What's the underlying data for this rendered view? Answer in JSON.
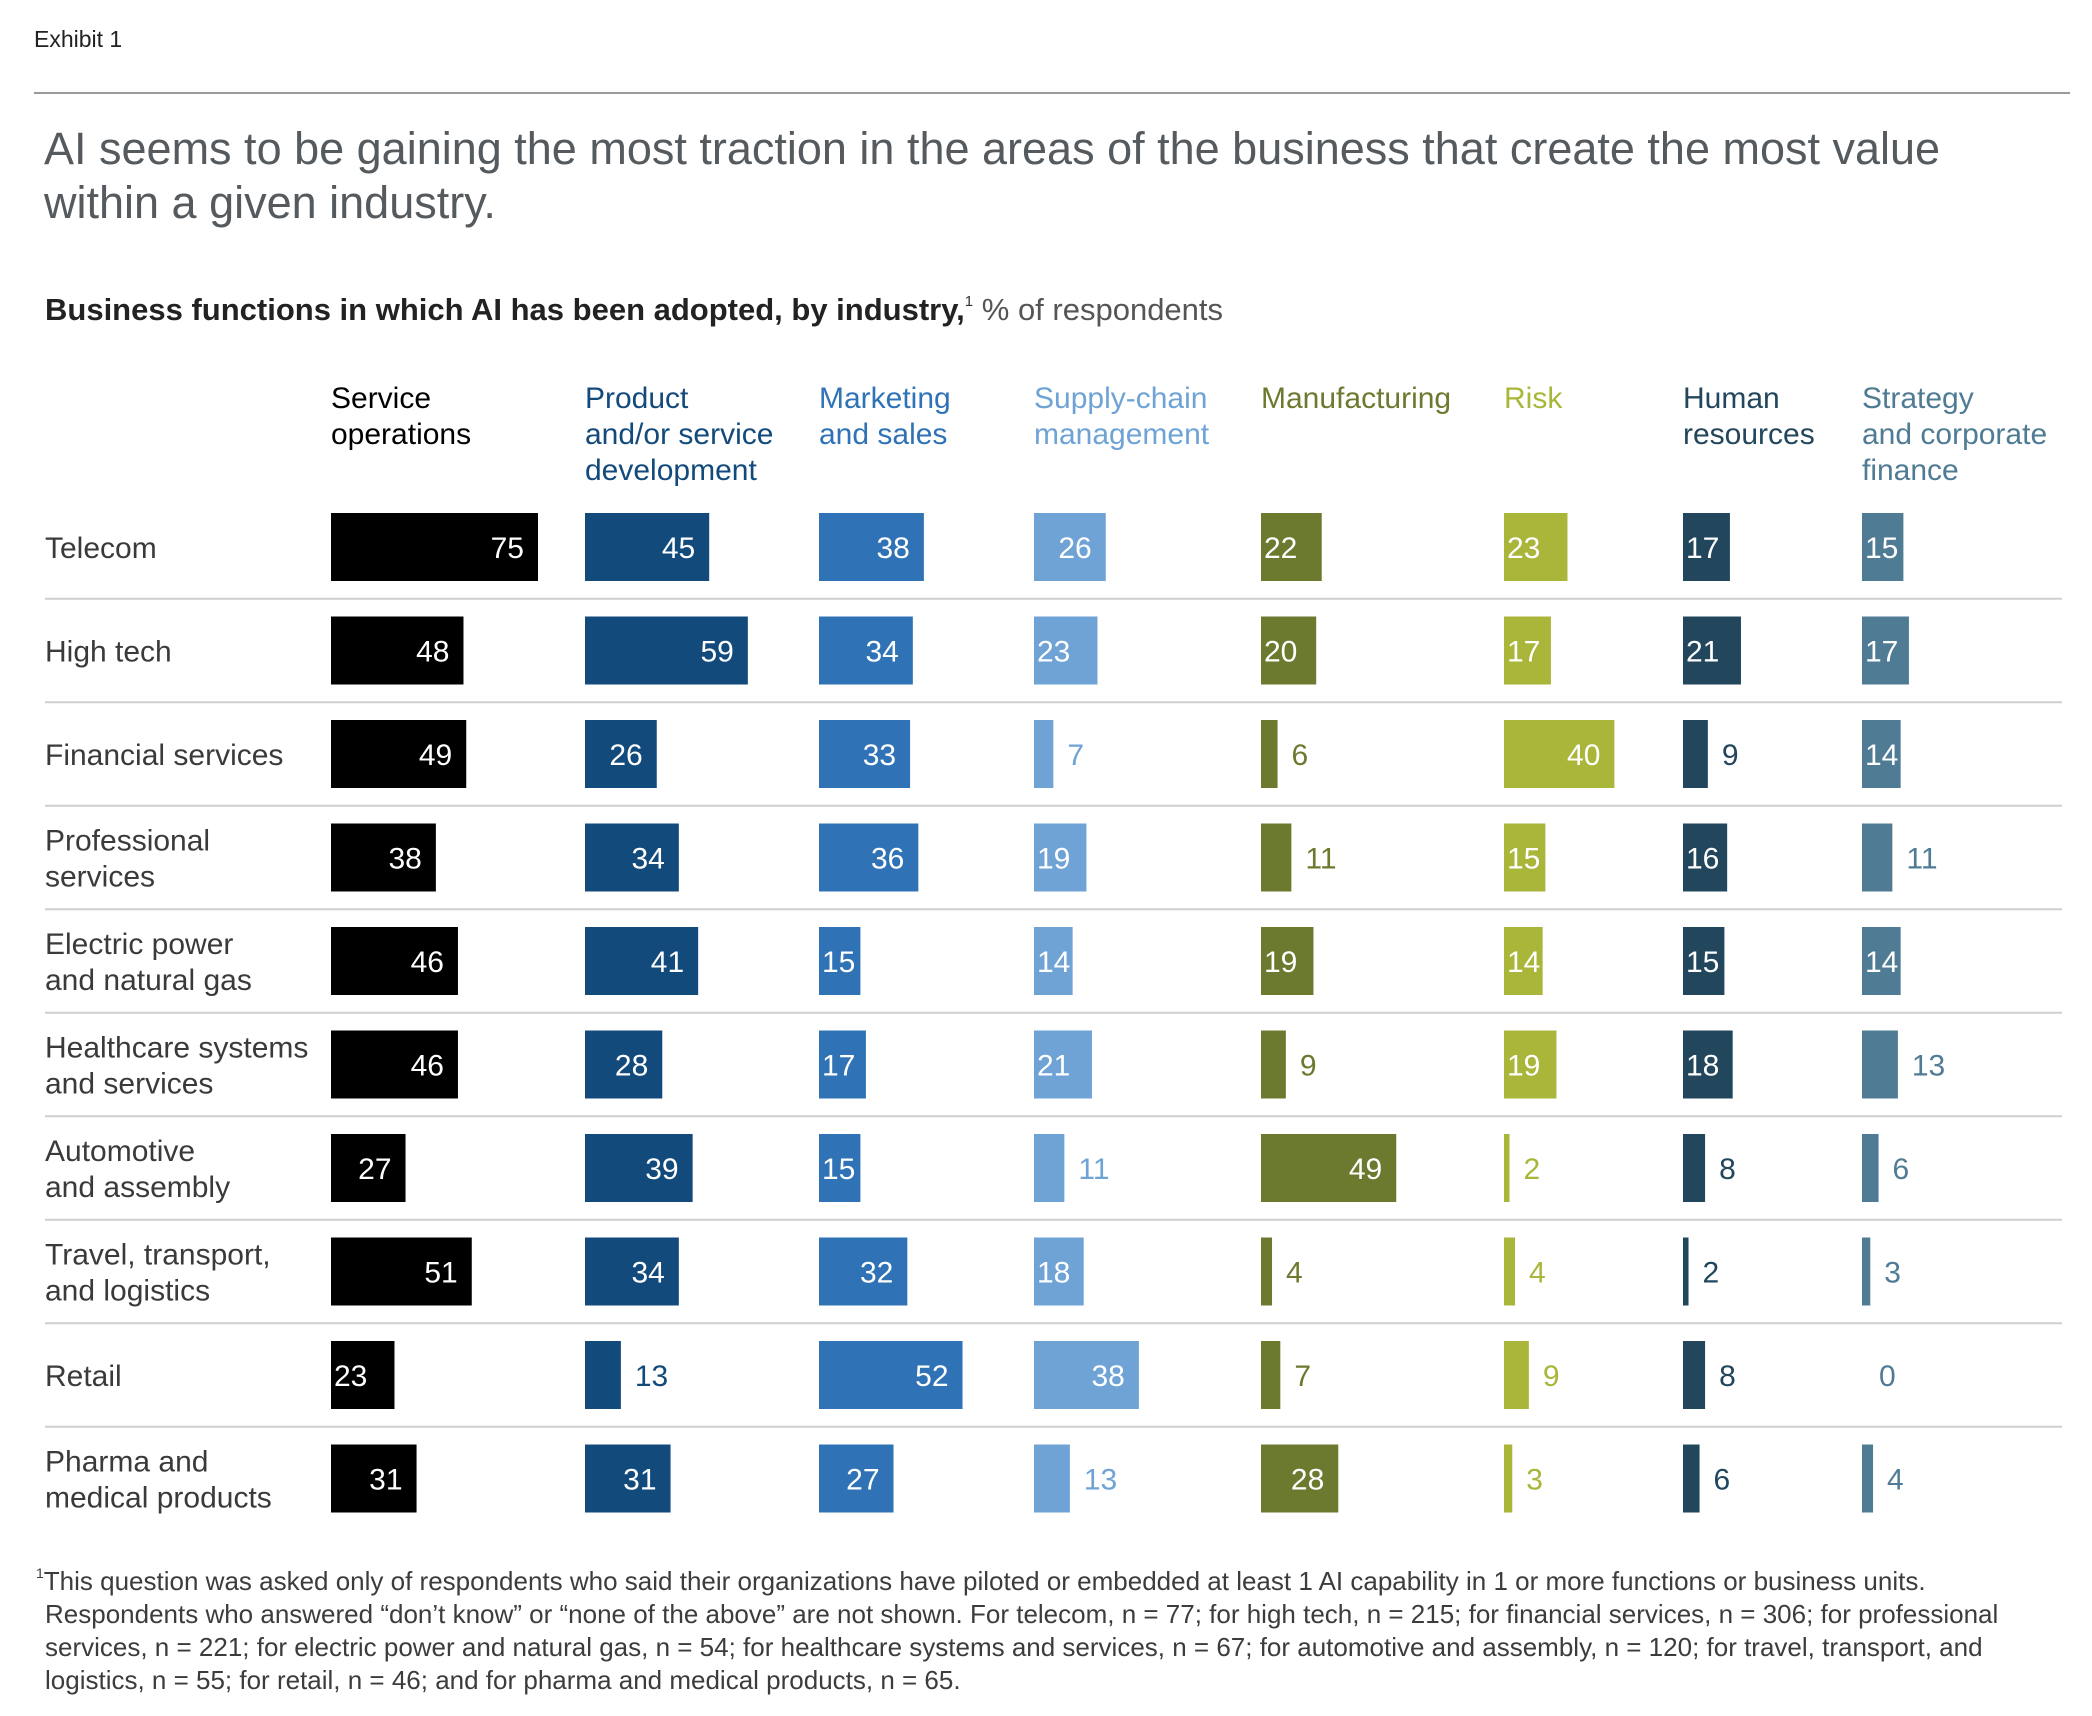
{
  "exhibit_label": "Exhibit 1",
  "headline": "AI seems to be gaining the most traction in the areas of the business that create the most value within a given industry.",
  "subtitle": {
    "bold": "Business functions in which AI has been adopted, by industry,",
    "footnote_marker": "1",
    "unit": "% of respondents"
  },
  "chart_data": {
    "type": "bar",
    "layout": "small-multiples horizontal bars",
    "series": [
      {
        "name": "Service operations",
        "lines": [
          "Service",
          "operations"
        ],
        "color": "#000000",
        "label_color": "#000000",
        "values": [
          75,
          48,
          49,
          38,
          46,
          46,
          27,
          51,
          23,
          31
        ]
      },
      {
        "name": "Product and/or service development",
        "lines": [
          "Product",
          "and/or service",
          "development"
        ],
        "color": "#134a7c",
        "label_color": "#134a7c",
        "values": [
          45,
          59,
          26,
          34,
          41,
          28,
          39,
          34,
          13,
          31
        ]
      },
      {
        "name": "Marketing and sales",
        "lines": [
          "Marketing",
          "and sales"
        ],
        "color": "#2f73b6",
        "label_color": "#2f73b6",
        "values": [
          38,
          34,
          33,
          36,
          15,
          17,
          15,
          32,
          52,
          27
        ]
      },
      {
        "name": "Supply-chain management",
        "lines": [
          "Supply-chain",
          "management"
        ],
        "color": "#6fa3d6",
        "label_color": "#6fa3d6",
        "values": [
          26,
          23,
          7,
          19,
          14,
          21,
          11,
          18,
          38,
          13
        ]
      },
      {
        "name": "Manufacturing",
        "lines": [
          "Manufacturing"
        ],
        "color": "#6b7a2f",
        "label_color": "#6b7a2f",
        "values": [
          22,
          20,
          6,
          11,
          19,
          9,
          49,
          4,
          7,
          28
        ]
      },
      {
        "name": "Risk",
        "lines": [
          "Risk"
        ],
        "color": "#a9b63a",
        "label_color": "#a9b63a",
        "values": [
          23,
          17,
          40,
          15,
          14,
          19,
          2,
          4,
          9,
          3
        ]
      },
      {
        "name": "Human resources",
        "lines": [
          "Human",
          "resources"
        ],
        "color": "#22465c",
        "label_color": "#22465c",
        "values": [
          17,
          21,
          9,
          16,
          15,
          18,
          8,
          2,
          8,
          6
        ]
      },
      {
        "name": "Strategy and corporate finance",
        "lines": [
          "Strategy",
          "and corporate",
          "finance"
        ],
        "color": "#4f7b94",
        "label_color": "#4f7b94",
        "values": [
          15,
          17,
          14,
          11,
          14,
          13,
          6,
          3,
          0,
          4
        ]
      }
    ],
    "categories": [
      {
        "name": "Telecom",
        "lines": [
          "Telecom"
        ]
      },
      {
        "name": "High tech",
        "lines": [
          "High tech"
        ]
      },
      {
        "name": "Financial services",
        "lines": [
          "Financial services"
        ]
      },
      {
        "name": "Professional services",
        "lines": [
          "Professional",
          "services"
        ]
      },
      {
        "name": "Electric power and natural gas",
        "lines": [
          "Electric power",
          "and natural gas"
        ]
      },
      {
        "name": "Healthcare systems and services",
        "lines": [
          "Healthcare systems",
          "and services"
        ]
      },
      {
        "name": "Automotive and assembly",
        "lines": [
          "Automotive",
          "and assembly"
        ]
      },
      {
        "name": "Travel, transport, and logistics",
        "lines": [
          "Travel, transport,",
          "and logistics"
        ]
      },
      {
        "name": "Retail",
        "lines": [
          "Retail"
        ]
      },
      {
        "name": "Pharma and medical products",
        "lines": [
          "Pharma and",
          "medical products"
        ]
      }
    ],
    "value_labels": "on bars",
    "grid": false,
    "row_separators": true
  },
  "footnote": {
    "marker": "1",
    "text": "This question was asked only of respondents who said their organizations have piloted or embedded at least 1 AI capability in 1 or more functions or business units. Respondents who answered “don’t know” or “none of the above” are not shown. For telecom, n = 77; for high tech, n = 215; for financial services, n = 306; for professional services, n = 221; for electric power and natural gas, n = 54; for healthcare systems and services, n = 67; for automotive and assembly, n = 120; for travel, transport, and logistics, n = 55; for retail, n = 46; and for pharma and medical products, n = 65."
  }
}
